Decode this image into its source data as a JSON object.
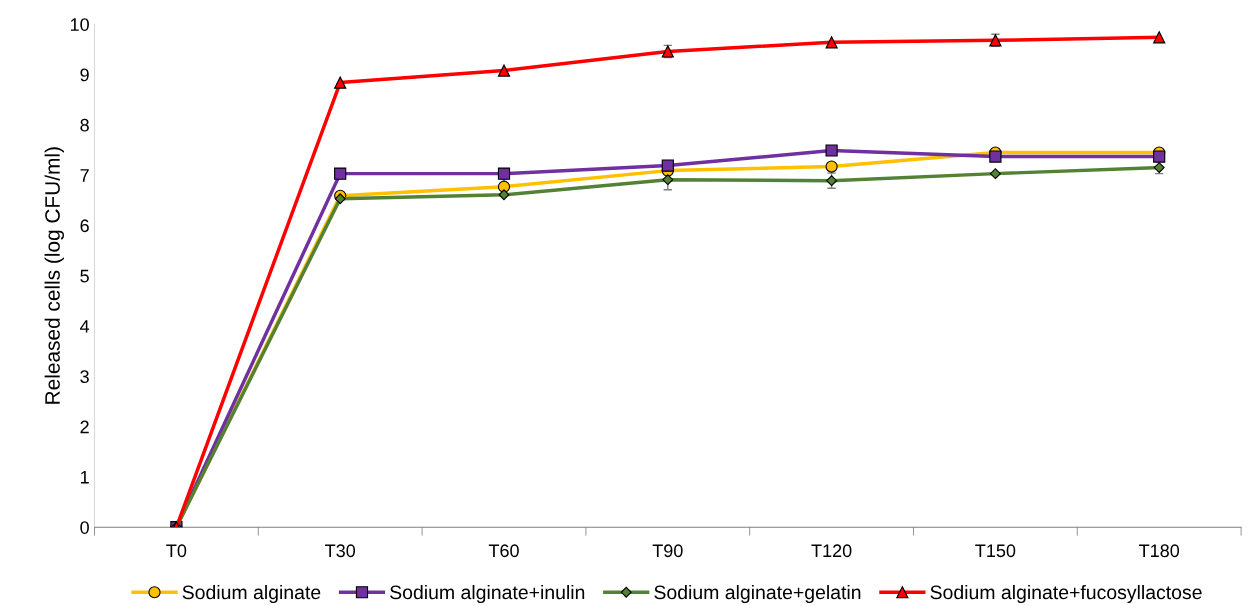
{
  "chart_data": {
    "type": "line",
    "ylabel": "Released cells (log CFU/ml)",
    "categories": [
      "T0",
      "T30",
      "T60",
      "T90",
      "T120",
      "T150",
      "T180"
    ],
    "series": [
      {
        "name": "Sodium alginate",
        "color": "#ffc000",
        "marker": "circle",
        "values": [
          0,
          6.59,
          6.77,
          7.09,
          7.17,
          7.45,
          7.45
        ],
        "errors": [
          null,
          null,
          0.15,
          null,
          null,
          null,
          null
        ]
      },
      {
        "name": "Sodium alginate+inulin",
        "color": "#7030a0",
        "marker": "square",
        "values": [
          0,
          7.03,
          7.03,
          7.19,
          7.49,
          7.37,
          7.37
        ]
      },
      {
        "name": "Sodium alginate+gelatin",
        "color": "#548235",
        "marker": "diamond",
        "values": [
          0,
          6.53,
          6.61,
          6.91,
          6.89,
          7.03,
          7.15
        ],
        "errors": [
          null,
          null,
          null,
          0.2,
          0.15,
          null,
          0.12
        ]
      },
      {
        "name": "Sodium alginate+fucosyllactose",
        "color": "#ff0000",
        "marker": "triangle",
        "values": [
          0,
          8.84,
          9.08,
          9.46,
          9.64,
          9.68,
          9.74
        ],
        "errors": [
          null,
          null,
          null,
          0.12,
          null,
          0.12,
          null
        ]
      }
    ],
    "ylim": [
      0,
      10
    ],
    "yticks": [
      0,
      1,
      2,
      3,
      4,
      5,
      6,
      7,
      8,
      9,
      10
    ],
    "grid": false,
    "legend": "bottom"
  }
}
